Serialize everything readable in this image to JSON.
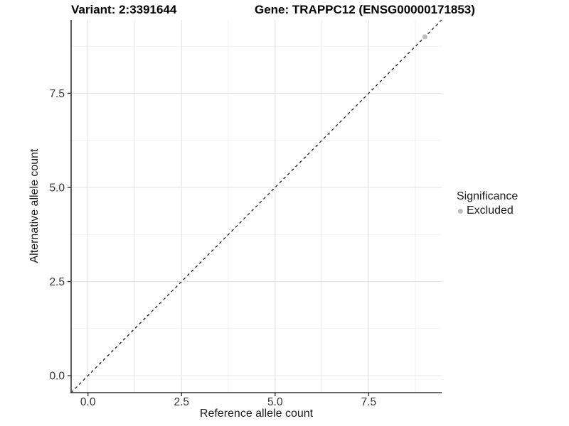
{
  "titles": {
    "variant": "Variant: 2:3391644",
    "gene": "Gene: TRAPPC12 (ENSG00000171853)"
  },
  "axes": {
    "x_label": "Reference allele count",
    "y_label": "Alternative allele count"
  },
  "legend": {
    "title": "Significance",
    "items": [
      {
        "label": "Excluded",
        "color": "#bdbdbd",
        "marker": "circle"
      }
    ]
  },
  "colors": {
    "background": "#ffffff",
    "major_grid": "#e4e4e4",
    "minor_grid": "#f0f0f0",
    "axis_line": "#333333",
    "tick_label": "#333333",
    "reference_line": "#1a1a1a",
    "excluded_point": "#bdbdbd"
  },
  "chart_data": {
    "type": "scatter",
    "title_left": "Variant: 2:3391644",
    "title_right": "Gene: TRAPPC12 (ENSG00000171853)",
    "xlabel": "Reference allele count",
    "ylabel": "Alternative allele count",
    "xlim": [
      -0.45,
      9.45
    ],
    "ylim": [
      -0.45,
      9.45
    ],
    "x_ticks": {
      "values": [
        0,
        2.5,
        5,
        7.5
      ],
      "labels": [
        "0.0",
        "2.5",
        "5.0",
        "7.5"
      ]
    },
    "y_ticks": {
      "values": [
        0,
        2.5,
        5,
        7.5
      ],
      "labels": [
        "0.0",
        "2.5",
        "5.0",
        "7.5"
      ]
    },
    "minor_gridlines": [
      1.25,
      3.75,
      6.25,
      8.75
    ],
    "grid": true,
    "reference_line": {
      "kind": "identity",
      "from": [
        -0.45,
        -0.45
      ],
      "to": [
        9.45,
        9.45
      ],
      "style": "dashed",
      "color": "#1a1a1a"
    },
    "series": [
      {
        "name": "Excluded",
        "color": "#bdbdbd",
        "points": [
          [
            9,
            9
          ]
        ]
      }
    ],
    "legend_position": "right",
    "legend_title": "Significance"
  }
}
